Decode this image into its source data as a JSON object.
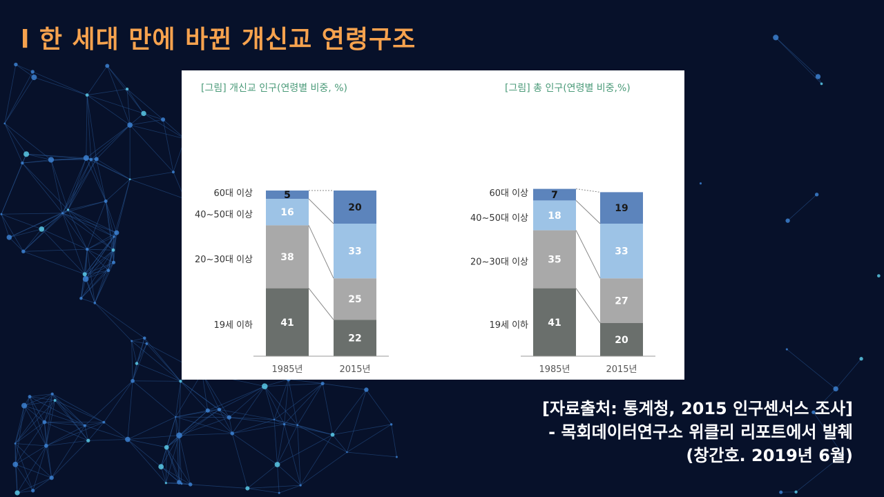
{
  "slide": {
    "title": "l 한 세대 만에 바뀐 개신교 연령구조"
  },
  "chart_data": [
    {
      "type": "bar",
      "stacked": true,
      "title": "[그림] 개신교 인구(연령별 비중, %)",
      "categories": [
        "1985년",
        "2015년"
      ],
      "series": [
        {
          "name": "19세 이하",
          "values": [
            41,
            22
          ],
          "color": "#6a6f6c"
        },
        {
          "name": "20~30대 이상",
          "values": [
            38,
            25
          ],
          "color": "#a9a9a9"
        },
        {
          "name": "40~50대 이상",
          "values": [
            16,
            33
          ],
          "color": "#9dc3e6"
        },
        {
          "name": "60대 이상",
          "values": [
            5,
            20
          ],
          "color": "#5c84bc"
        }
      ],
      "ylim": [
        0,
        100
      ],
      "legend": "left"
    },
    {
      "type": "bar",
      "stacked": true,
      "title": "[그림] 총 인구(연령별 비중,%)",
      "categories": [
        "1985년",
        "2015년"
      ],
      "series": [
        {
          "name": "19세 이하",
          "values": [
            41,
            20
          ],
          "color": "#6a6f6c"
        },
        {
          "name": "20~30대 이상",
          "values": [
            35,
            27
          ],
          "color": "#a9a9a9"
        },
        {
          "name": "40~50대 이상",
          "values": [
            18,
            33
          ],
          "color": "#9dc3e6"
        },
        {
          "name": "60대 이상",
          "values": [
            7,
            19
          ],
          "color": "#5c84bc"
        }
      ],
      "ylim": [
        0,
        100
      ],
      "legend": "left"
    }
  ],
  "source": {
    "line1": "[자료출처: 통계청, 2015 인구센서스 조사]",
    "line2": "- 목회데이터연구소 위클리 리포트에서 발췌",
    "line3": "(창간호. 2019년 6월)"
  },
  "colors": {
    "background": "#07112a",
    "title": "#f6a24e",
    "chart_title": "#4a9a78"
  }
}
